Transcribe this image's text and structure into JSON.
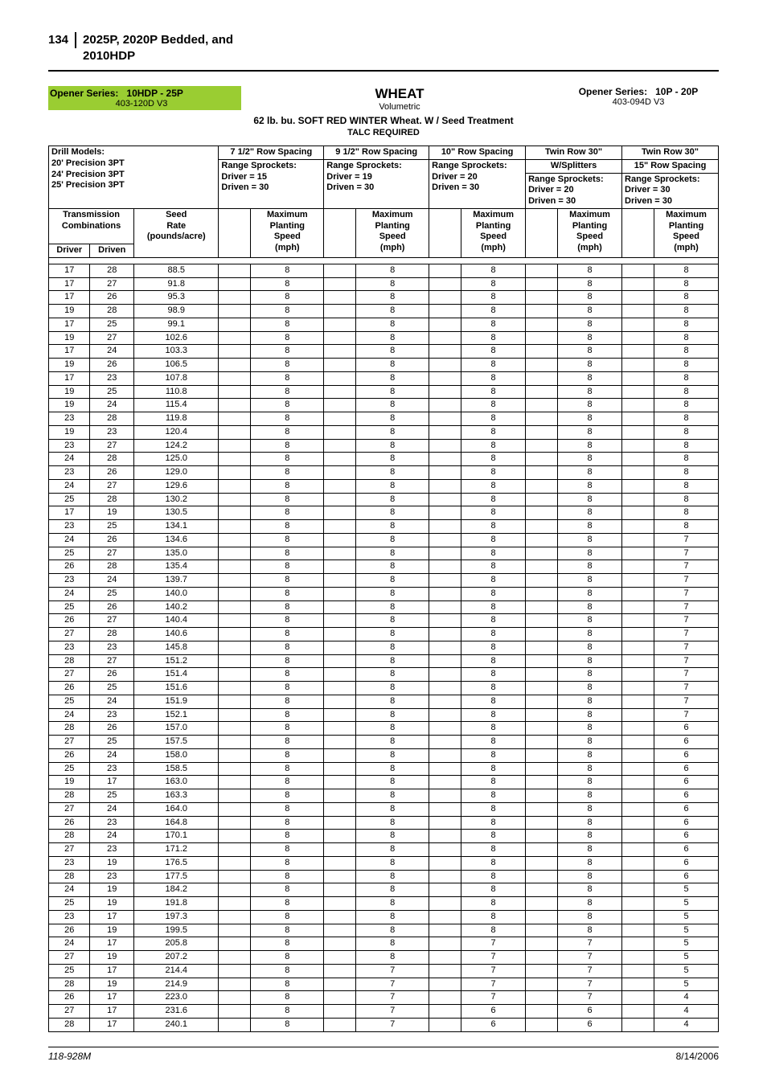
{
  "page_number": "134",
  "page_title": "2025P, 2020P Bedded, and 2010HDP",
  "opener_left": {
    "label": "Opener Series:",
    "value": "10HDP - 25P",
    "code": "403-120D V3"
  },
  "center": {
    "main": "WHEAT",
    "sub": "Volumetric"
  },
  "opener_right": {
    "label": "Opener Series:",
    "value": "10P - 20P",
    "code": "403-094D V3"
  },
  "seed_line": "62 lb. bu. SOFT RED WINTER Wheat. W / Seed Treatment",
  "talc": "TALC REQUIRED",
  "drill_models_label": "Drill Models:",
  "drill_models": [
    "20' Precision 3PT",
    "24' Precision 3PT",
    "25' Precision 3PT"
  ],
  "spacings": [
    {
      "title": "7 1/2\" Row Spacing",
      "sub": "",
      "range_label": "Range Sprockets:",
      "driver": "Driver = 15",
      "driven": "Driven = 30"
    },
    {
      "title": "9 1/2\" Row Spacing",
      "sub": "",
      "range_label": "Range Sprockets:",
      "driver": "Driver = 19",
      "driven": "Driven = 30"
    },
    {
      "title": "10\" Row Spacing",
      "sub": "",
      "range_label": "Range Sprockets:",
      "driver": "Driver = 20",
      "driven": "Driven = 30"
    },
    {
      "title": "Twin Row 30\"",
      "sub": "W/Splitters",
      "range_label": "Range Sprockets:",
      "driver": "Driver = 20",
      "driven": "Driven = 30"
    },
    {
      "title": "Twin Row 30\"",
      "sub": "15\" Row Spacing",
      "range_label": "Range Sprockets:",
      "driver": "Driver = 30",
      "driven": "Driven = 30"
    }
  ],
  "trans_label1": "Transmission",
  "trans_label2": "Combinations",
  "seed_rate_label1": "Seed",
  "seed_rate_label2": "Rate",
  "seed_rate_label3": "(pounds/acre)",
  "driver_label": "Driver",
  "driven_label": "Driven",
  "speed_hdr1": "Maximum",
  "speed_hdr2": "Planting",
  "speed_hdr3": "Speed",
  "speed_hdr4": "(mph)",
  "rows": [
    [
      "17",
      "28",
      "88.5",
      "8",
      "8",
      "8",
      "8",
      "8"
    ],
    [
      "17",
      "27",
      "91.8",
      "8",
      "8",
      "8",
      "8",
      "8"
    ],
    [
      "17",
      "26",
      "95.3",
      "8",
      "8",
      "8",
      "8",
      "8"
    ],
    [
      "19",
      "28",
      "98.9",
      "8",
      "8",
      "8",
      "8",
      "8"
    ],
    [
      "17",
      "25",
      "99.1",
      "8",
      "8",
      "8",
      "8",
      "8"
    ],
    [
      "19",
      "27",
      "102.6",
      "8",
      "8",
      "8",
      "8",
      "8"
    ],
    [
      "17",
      "24",
      "103.3",
      "8",
      "8",
      "8",
      "8",
      "8"
    ],
    [
      "19",
      "26",
      "106.5",
      "8",
      "8",
      "8",
      "8",
      "8"
    ],
    [
      "17",
      "23",
      "107.8",
      "8",
      "8",
      "8",
      "8",
      "8"
    ],
    [
      "19",
      "25",
      "110.8",
      "8",
      "8",
      "8",
      "8",
      "8"
    ],
    [
      "19",
      "24",
      "115.4",
      "8",
      "8",
      "8",
      "8",
      "8"
    ],
    [
      "23",
      "28",
      "119.8",
      "8",
      "8",
      "8",
      "8",
      "8"
    ],
    [
      "19",
      "23",
      "120.4",
      "8",
      "8",
      "8",
      "8",
      "8"
    ],
    [
      "23",
      "27",
      "124.2",
      "8",
      "8",
      "8",
      "8",
      "8"
    ],
    [
      "24",
      "28",
      "125.0",
      "8",
      "8",
      "8",
      "8",
      "8"
    ],
    [
      "23",
      "26",
      "129.0",
      "8",
      "8",
      "8",
      "8",
      "8"
    ],
    [
      "24",
      "27",
      "129.6",
      "8",
      "8",
      "8",
      "8",
      "8"
    ],
    [
      "25",
      "28",
      "130.2",
      "8",
      "8",
      "8",
      "8",
      "8"
    ],
    [
      "17",
      "19",
      "130.5",
      "8",
      "8",
      "8",
      "8",
      "8"
    ],
    [
      "23",
      "25",
      "134.1",
      "8",
      "8",
      "8",
      "8",
      "8"
    ],
    [
      "24",
      "26",
      "134.6",
      "8",
      "8",
      "8",
      "8",
      "7"
    ],
    [
      "25",
      "27",
      "135.0",
      "8",
      "8",
      "8",
      "8",
      "7"
    ],
    [
      "26",
      "28",
      "135.4",
      "8",
      "8",
      "8",
      "8",
      "7"
    ],
    [
      "23",
      "24",
      "139.7",
      "8",
      "8",
      "8",
      "8",
      "7"
    ],
    [
      "24",
      "25",
      "140.0",
      "8",
      "8",
      "8",
      "8",
      "7"
    ],
    [
      "25",
      "26",
      "140.2",
      "8",
      "8",
      "8",
      "8",
      "7"
    ],
    [
      "26",
      "27",
      "140.4",
      "8",
      "8",
      "8",
      "8",
      "7"
    ],
    [
      "27",
      "28",
      "140.6",
      "8",
      "8",
      "8",
      "8",
      "7"
    ],
    [
      "23",
      "23",
      "145.8",
      "8",
      "8",
      "8",
      "8",
      "7"
    ],
    [
      "28",
      "27",
      "151.2",
      "8",
      "8",
      "8",
      "8",
      "7"
    ],
    [
      "27",
      "26",
      "151.4",
      "8",
      "8",
      "8",
      "8",
      "7"
    ],
    [
      "26",
      "25",
      "151.6",
      "8",
      "8",
      "8",
      "8",
      "7"
    ],
    [
      "25",
      "24",
      "151.9",
      "8",
      "8",
      "8",
      "8",
      "7"
    ],
    [
      "24",
      "23",
      "152.1",
      "8",
      "8",
      "8",
      "8",
      "7"
    ],
    [
      "28",
      "26",
      "157.0",
      "8",
      "8",
      "8",
      "8",
      "6"
    ],
    [
      "27",
      "25",
      "157.5",
      "8",
      "8",
      "8",
      "8",
      "6"
    ],
    [
      "26",
      "24",
      "158.0",
      "8",
      "8",
      "8",
      "8",
      "6"
    ],
    [
      "25",
      "23",
      "158.5",
      "8",
      "8",
      "8",
      "8",
      "6"
    ],
    [
      "19",
      "17",
      "163.0",
      "8",
      "8",
      "8",
      "8",
      "6"
    ],
    [
      "28",
      "25",
      "163.3",
      "8",
      "8",
      "8",
      "8",
      "6"
    ],
    [
      "27",
      "24",
      "164.0",
      "8",
      "8",
      "8",
      "8",
      "6"
    ],
    [
      "26",
      "23",
      "164.8",
      "8",
      "8",
      "8",
      "8",
      "6"
    ],
    [
      "28",
      "24",
      "170.1",
      "8",
      "8",
      "8",
      "8",
      "6"
    ],
    [
      "27",
      "23",
      "171.2",
      "8",
      "8",
      "8",
      "8",
      "6"
    ],
    [
      "23",
      "19",
      "176.5",
      "8",
      "8",
      "8",
      "8",
      "6"
    ],
    [
      "28",
      "23",
      "177.5",
      "8",
      "8",
      "8",
      "8",
      "6"
    ],
    [
      "24",
      "19",
      "184.2",
      "8",
      "8",
      "8",
      "8",
      "5"
    ],
    [
      "25",
      "19",
      "191.8",
      "8",
      "8",
      "8",
      "8",
      "5"
    ],
    [
      "23",
      "17",
      "197.3",
      "8",
      "8",
      "8",
      "8",
      "5"
    ],
    [
      "26",
      "19",
      "199.5",
      "8",
      "8",
      "8",
      "8",
      "5"
    ],
    [
      "24",
      "17",
      "205.8",
      "8",
      "8",
      "7",
      "7",
      "5"
    ],
    [
      "27",
      "19",
      "207.2",
      "8",
      "8",
      "7",
      "7",
      "5"
    ],
    [
      "25",
      "17",
      "214.4",
      "8",
      "7",
      "7",
      "7",
      "5"
    ],
    [
      "28",
      "19",
      "214.9",
      "8",
      "7",
      "7",
      "7",
      "5"
    ],
    [
      "26",
      "17",
      "223.0",
      "8",
      "7",
      "7",
      "7",
      "4"
    ],
    [
      "27",
      "17",
      "231.6",
      "8",
      "7",
      "6",
      "6",
      "4"
    ],
    [
      "28",
      "17",
      "240.1",
      "8",
      "7",
      "6",
      "6",
      "4"
    ]
  ],
  "footer": {
    "left": "118-928M",
    "right": "8/14/2006"
  }
}
